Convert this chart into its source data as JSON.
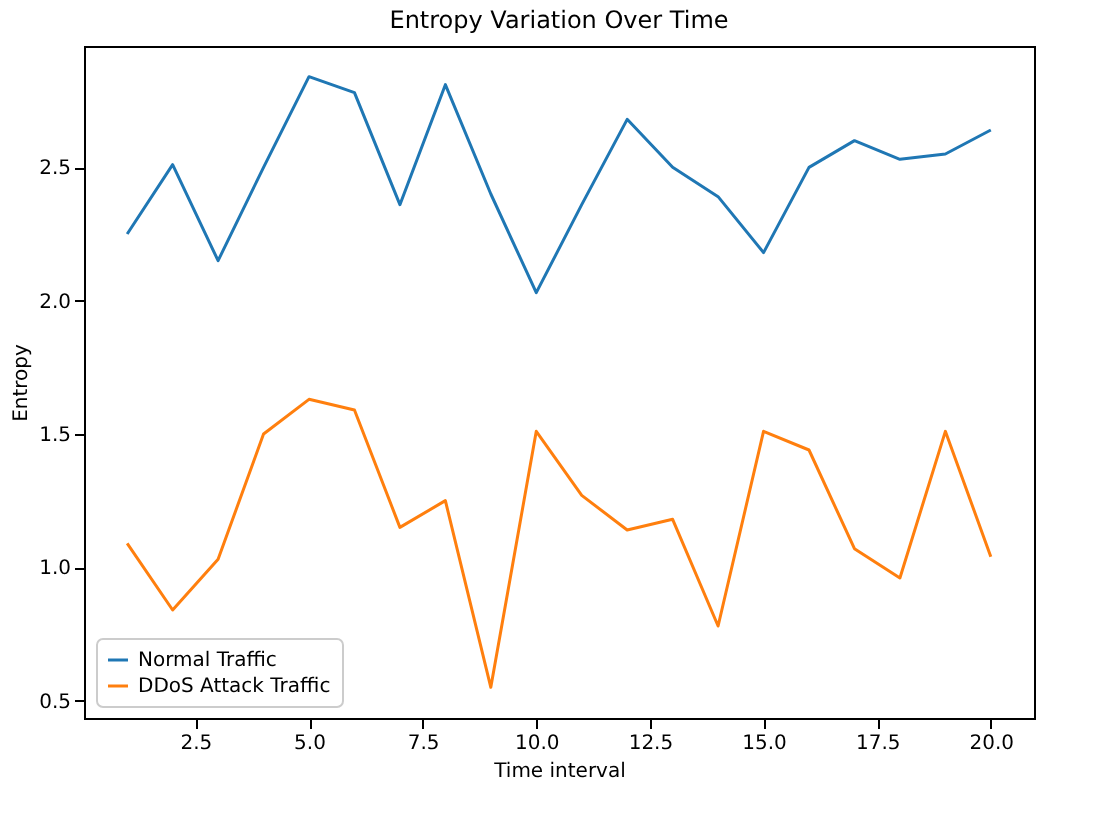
{
  "chart_data": {
    "type": "line",
    "title": "Entropy Variation Over Time",
    "xlabel": "Time interval",
    "ylabel": "Entropy",
    "x": [
      1,
      2,
      3,
      4,
      5,
      6,
      7,
      8,
      9,
      10,
      11,
      12,
      13,
      14,
      15,
      16,
      17,
      18,
      19,
      20
    ],
    "series": [
      {
        "name": "Normal Traffic",
        "color": "#1f77b4",
        "values": [
          2.25,
          2.51,
          2.15,
          2.5,
          2.84,
          2.78,
          2.36,
          2.81,
          2.4,
          2.03,
          2.36,
          2.68,
          2.5,
          2.39,
          2.18,
          2.5,
          2.6,
          2.53,
          2.55,
          2.64
        ]
      },
      {
        "name": "DDoS Attack Traffic",
        "color": "#ff7f0e",
        "values": [
          1.09,
          0.84,
          1.03,
          1.5,
          1.63,
          1.59,
          1.15,
          1.25,
          0.55,
          1.51,
          1.27,
          1.14,
          1.18,
          0.78,
          1.51,
          1.44,
          1.07,
          0.96,
          1.51,
          1.04
        ]
      }
    ],
    "xlim": [
      0.05,
      20.95
    ],
    "ylim": [
      0.435,
      2.955
    ],
    "xticks": [
      {
        "value": 2.5,
        "label": "2.5"
      },
      {
        "value": 5,
        "label": "5.0"
      },
      {
        "value": 7.5,
        "label": "7.5"
      },
      {
        "value": 10,
        "label": "10.0"
      },
      {
        "value": 12.5,
        "label": "12.5"
      },
      {
        "value": 15,
        "label": "15.0"
      },
      {
        "value": 17.5,
        "label": "17.5"
      },
      {
        "value": 20,
        "label": "20.0"
      }
    ],
    "yticks": [
      {
        "value": 0.5,
        "label": "0.5"
      },
      {
        "value": 1,
        "label": "1.0"
      },
      {
        "value": 1.5,
        "label": "1.5"
      },
      {
        "value": 2,
        "label": "2.0"
      },
      {
        "value": 2.5,
        "label": "2.5"
      }
    ],
    "legend": "bottom left",
    "grid": false
  }
}
